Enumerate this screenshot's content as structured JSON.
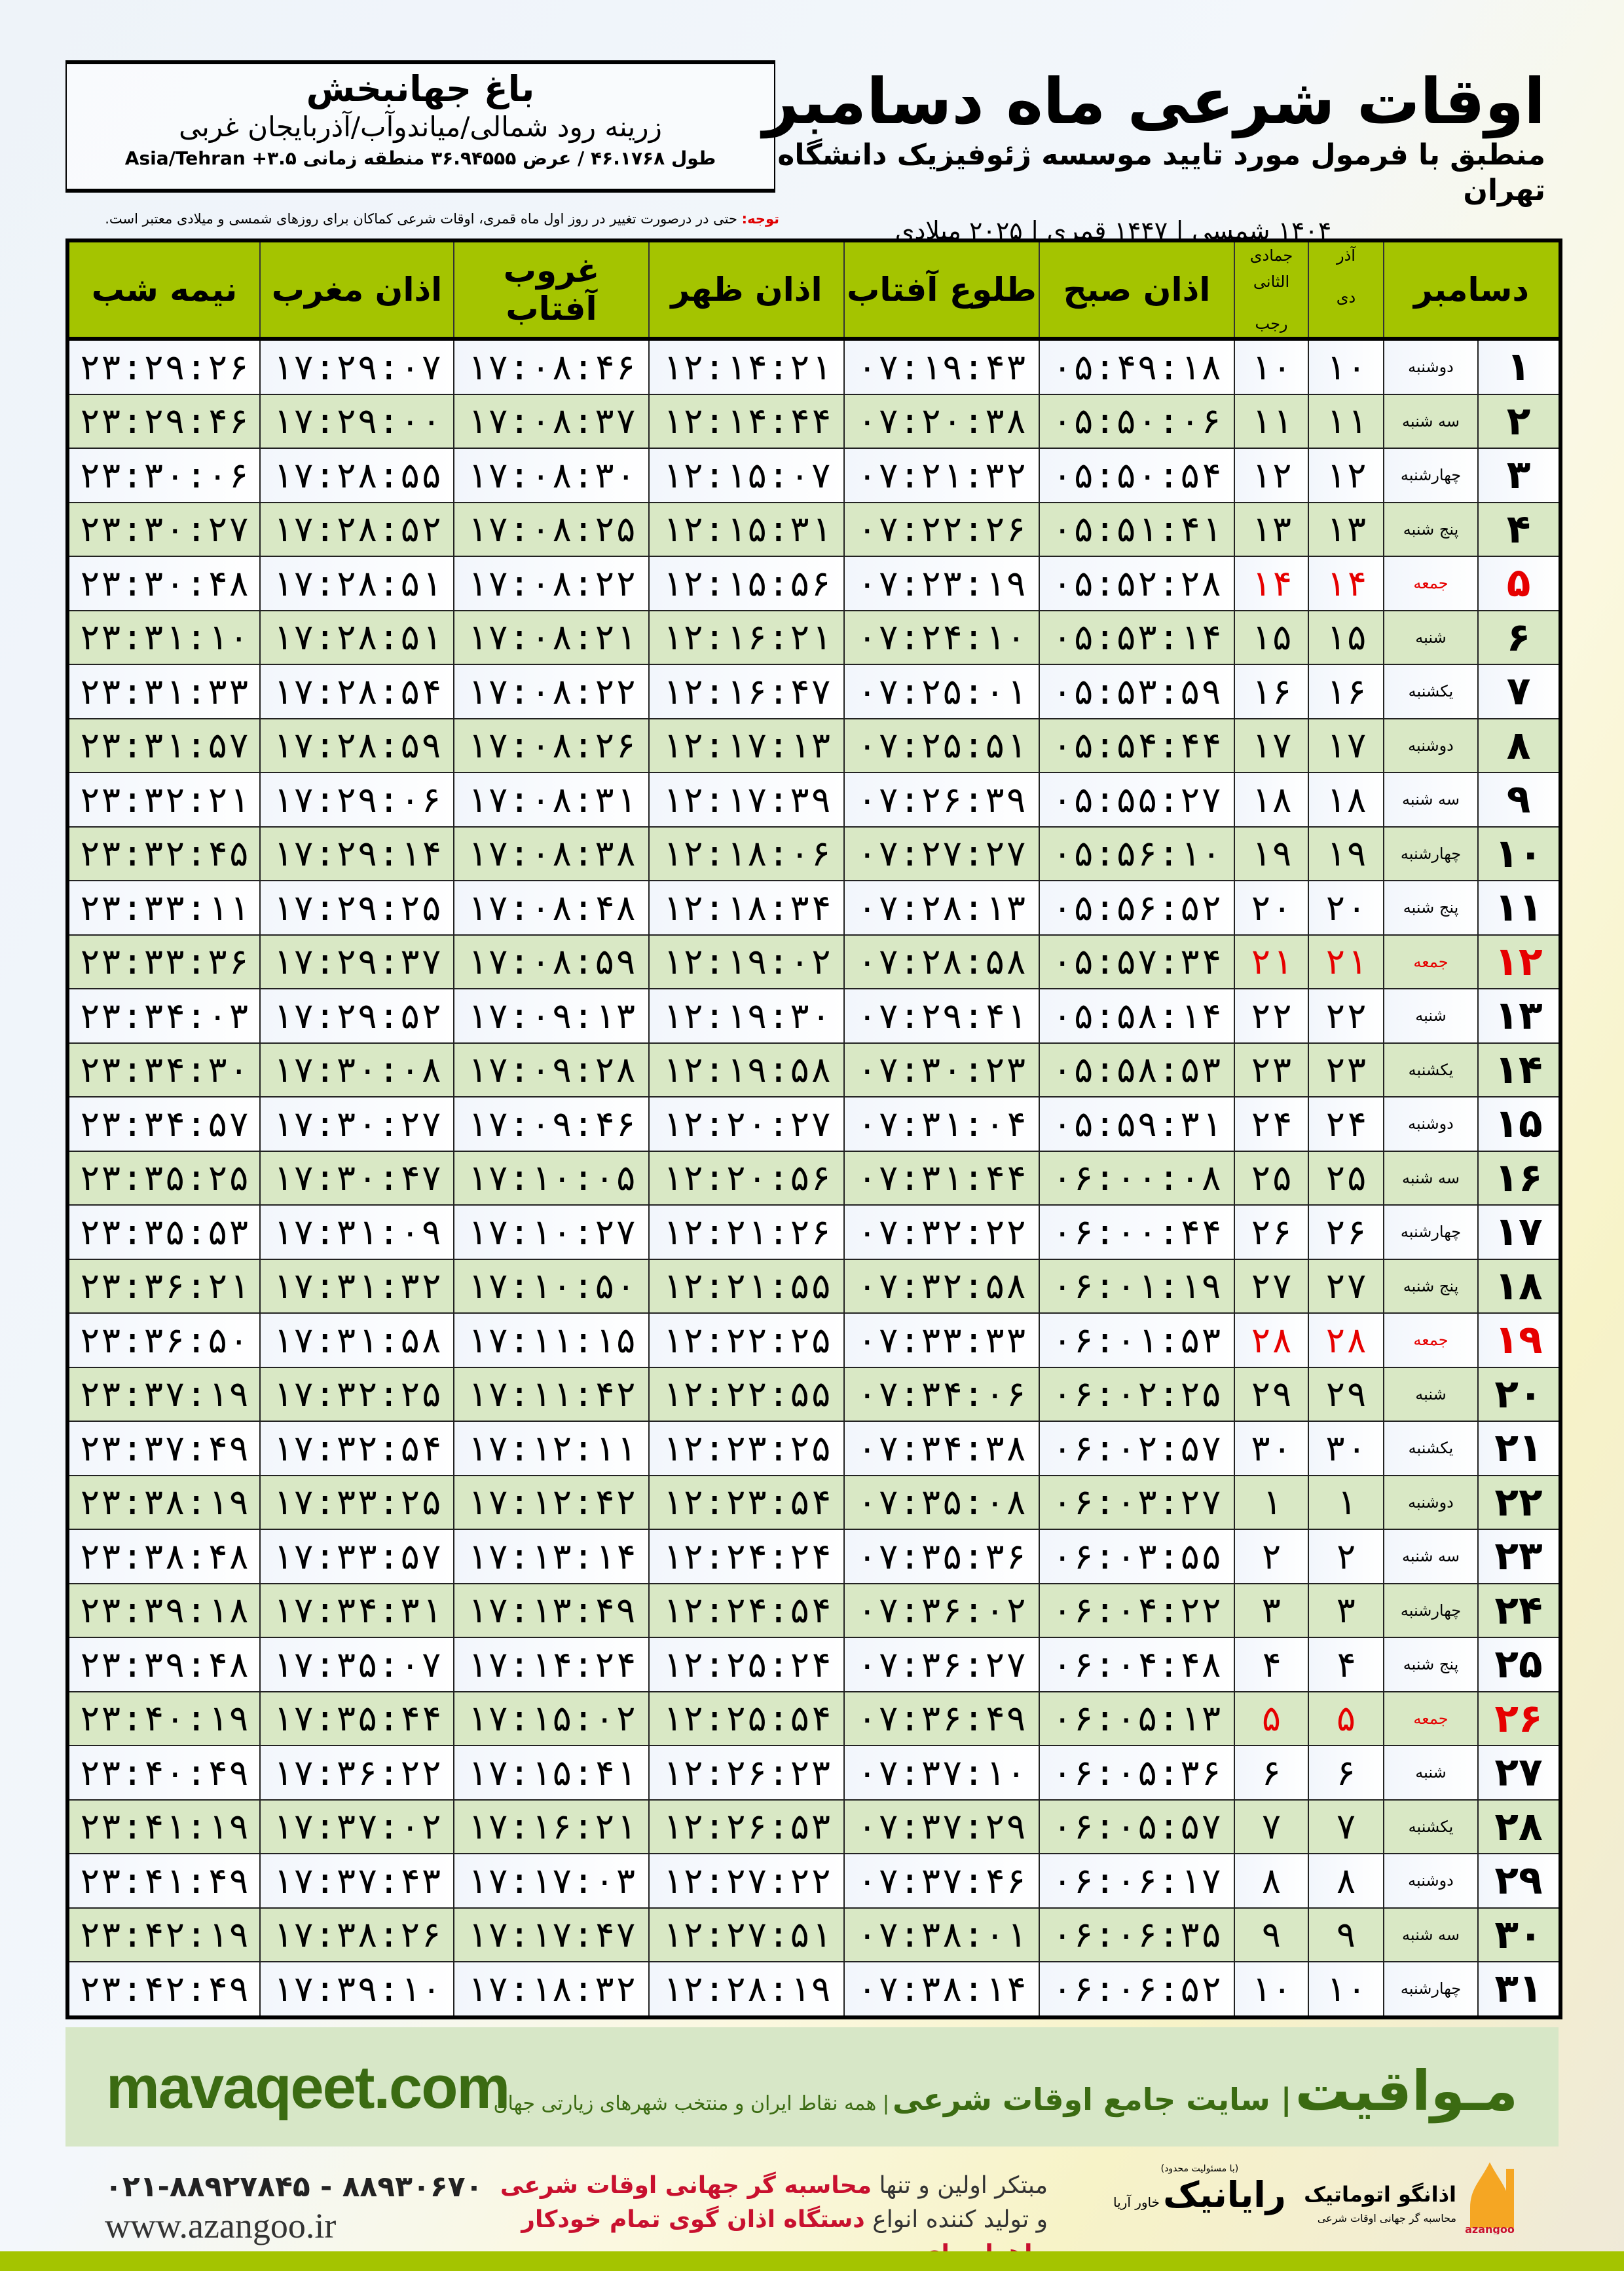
{
  "info": {
    "city": "باغ جهانبخش",
    "region": "زرینه رود شمالی/میاندوآب/آذربایجان غربی",
    "coords": "طول ۴۶.۱۷۶۸ / عرض ۳۶.۹۴۵۵۵ منطقه زمانی ۳.۵+ Asia/Tehran"
  },
  "title": {
    "main": "اوقات شرعی ماه دسامبر",
    "sub": "منطبق با فرمول مورد تایید موسسه ژئوفیزیک دانشگاه تهران",
    "years": "۱۴۰۴ شمسی | ۱۴۴۷ قمری | ۲۰۲۵ میلادی"
  },
  "note": {
    "label": "توجه:",
    "text": " حتی در درصورت تغییر در روز اول ماه قمری، اوقات شرعی کماکان برای روزهای شمسی و میلادی معتبر است."
  },
  "colors": {
    "header": "#a4c400",
    "friday": "#e60000",
    "row_alt": "#d9e8c5",
    "brand": "#3b6b12"
  },
  "table": {
    "headers": {
      "day": "دسامبر",
      "shamsi_top": "آذر",
      "shamsi_bottom": "دی",
      "qamari_top": "جمادی الثانی",
      "qamari_bottom": "رجب",
      "fajr": "اذان صبح",
      "sunrise": "طلوع آفتاب",
      "dhuhr": "اذان ظهر",
      "sunset": "غروب آفتاب",
      "maghrib": "اذان مغرب",
      "midnight": "نیمه شب"
    },
    "rows": [
      {
        "day": "۱",
        "weekday": "دوشنبه",
        "shamsi": "۱۰",
        "qamari": "۱۰",
        "fajr": "۰۵:۴۹:۱۸",
        "sunrise": "۰۷:۱۹:۴۳",
        "dhuhr": "۱۲:۱۴:۲۱",
        "sunset": "۱۷:۰۸:۴۶",
        "maghrib": "۱۷:۲۹:۰۷",
        "midnight": "۲۳:۲۹:۲۶",
        "friday": false
      },
      {
        "day": "۲",
        "weekday": "سه شنبه",
        "shamsi": "۱۱",
        "qamari": "۱۱",
        "fajr": "۰۵:۵۰:۰۶",
        "sunrise": "۰۷:۲۰:۳۸",
        "dhuhr": "۱۲:۱۴:۴۴",
        "sunset": "۱۷:۰۸:۳۷",
        "maghrib": "۱۷:۲۹:۰۰",
        "midnight": "۲۳:۲۹:۴۶",
        "friday": false
      },
      {
        "day": "۳",
        "weekday": "چهارشنبه",
        "shamsi": "۱۲",
        "qamari": "۱۲",
        "fajr": "۰۵:۵۰:۵۴",
        "sunrise": "۰۷:۲۱:۳۲",
        "dhuhr": "۱۲:۱۵:۰۷",
        "sunset": "۱۷:۰۸:۳۰",
        "maghrib": "۱۷:۲۸:۵۵",
        "midnight": "۲۳:۳۰:۰۶",
        "friday": false
      },
      {
        "day": "۴",
        "weekday": "پنج شنبه",
        "shamsi": "۱۳",
        "qamari": "۱۳",
        "fajr": "۰۵:۵۱:۴۱",
        "sunrise": "۰۷:۲۲:۲۶",
        "dhuhr": "۱۲:۱۵:۳۱",
        "sunset": "۱۷:۰۸:۲۵",
        "maghrib": "۱۷:۲۸:۵۲",
        "midnight": "۲۳:۳۰:۲۷",
        "friday": false
      },
      {
        "day": "۵",
        "weekday": "جمعه",
        "shamsi": "۱۴",
        "qamari": "۱۴",
        "fajr": "۰۵:۵۲:۲۸",
        "sunrise": "۰۷:۲۳:۱۹",
        "dhuhr": "۱۲:۱۵:۵۶",
        "sunset": "۱۷:۰۸:۲۲",
        "maghrib": "۱۷:۲۸:۵۱",
        "midnight": "۲۳:۳۰:۴۸",
        "friday": true
      },
      {
        "day": "۶",
        "weekday": "شنبه",
        "shamsi": "۱۵",
        "qamari": "۱۵",
        "fajr": "۰۵:۵۳:۱۴",
        "sunrise": "۰۷:۲۴:۱۰",
        "dhuhr": "۱۲:۱۶:۲۱",
        "sunset": "۱۷:۰۸:۲۱",
        "maghrib": "۱۷:۲۸:۵۱",
        "midnight": "۲۳:۳۱:۱۰",
        "friday": false
      },
      {
        "day": "۷",
        "weekday": "یکشنبه",
        "shamsi": "۱۶",
        "qamari": "۱۶",
        "fajr": "۰۵:۵۳:۵۹",
        "sunrise": "۰۷:۲۵:۰۱",
        "dhuhr": "۱۲:۱۶:۴۷",
        "sunset": "۱۷:۰۸:۲۲",
        "maghrib": "۱۷:۲۸:۵۴",
        "midnight": "۲۳:۳۱:۳۳",
        "friday": false
      },
      {
        "day": "۸",
        "weekday": "دوشنبه",
        "shamsi": "۱۷",
        "qamari": "۱۷",
        "fajr": "۰۵:۵۴:۴۴",
        "sunrise": "۰۷:۲۵:۵۱",
        "dhuhr": "۱۲:۱۷:۱۳",
        "sunset": "۱۷:۰۸:۲۶",
        "maghrib": "۱۷:۲۸:۵۹",
        "midnight": "۲۳:۳۱:۵۷",
        "friday": false
      },
      {
        "day": "۹",
        "weekday": "سه شنبه",
        "shamsi": "۱۸",
        "qamari": "۱۸",
        "fajr": "۰۵:۵۵:۲۷",
        "sunrise": "۰۷:۲۶:۳۹",
        "dhuhr": "۱۲:۱۷:۳۹",
        "sunset": "۱۷:۰۸:۳۱",
        "maghrib": "۱۷:۲۹:۰۶",
        "midnight": "۲۳:۳۲:۲۱",
        "friday": false
      },
      {
        "day": "۱۰",
        "weekday": "چهارشنبه",
        "shamsi": "۱۹",
        "qamari": "۱۹",
        "fajr": "۰۵:۵۶:۱۰",
        "sunrise": "۰۷:۲۷:۲۷",
        "dhuhr": "۱۲:۱۸:۰۶",
        "sunset": "۱۷:۰۸:۳۸",
        "maghrib": "۱۷:۲۹:۱۴",
        "midnight": "۲۳:۳۲:۴۵",
        "friday": false
      },
      {
        "day": "۱۱",
        "weekday": "پنج شنبه",
        "shamsi": "۲۰",
        "qamari": "۲۰",
        "fajr": "۰۵:۵۶:۵۲",
        "sunrise": "۰۷:۲۸:۱۳",
        "dhuhr": "۱۲:۱۸:۳۴",
        "sunset": "۱۷:۰۸:۴۸",
        "maghrib": "۱۷:۲۹:۲۵",
        "midnight": "۲۳:۳۳:۱۱",
        "friday": false
      },
      {
        "day": "۱۲",
        "weekday": "جمعه",
        "shamsi": "۲۱",
        "qamari": "۲۱",
        "fajr": "۰۵:۵۷:۳۴",
        "sunrise": "۰۷:۲۸:۵۸",
        "dhuhr": "۱۲:۱۹:۰۲",
        "sunset": "۱۷:۰۸:۵۹",
        "maghrib": "۱۷:۲۹:۳۷",
        "midnight": "۲۳:۳۳:۳۶",
        "friday": true
      },
      {
        "day": "۱۳",
        "weekday": "شنبه",
        "shamsi": "۲۲",
        "qamari": "۲۲",
        "fajr": "۰۵:۵۸:۱۴",
        "sunrise": "۰۷:۲۹:۴۱",
        "dhuhr": "۱۲:۱۹:۳۰",
        "sunset": "۱۷:۰۹:۱۳",
        "maghrib": "۱۷:۲۹:۵۲",
        "midnight": "۲۳:۳۴:۰۳",
        "friday": false
      },
      {
        "day": "۱۴",
        "weekday": "یکشنبه",
        "shamsi": "۲۳",
        "qamari": "۲۳",
        "fajr": "۰۵:۵۸:۵۳",
        "sunrise": "۰۷:۳۰:۲۳",
        "dhuhr": "۱۲:۱۹:۵۸",
        "sunset": "۱۷:۰۹:۲۸",
        "maghrib": "۱۷:۳۰:۰۸",
        "midnight": "۲۳:۳۴:۳۰",
        "friday": false
      },
      {
        "day": "۱۵",
        "weekday": "دوشنبه",
        "shamsi": "۲۴",
        "qamari": "۲۴",
        "fajr": "۰۵:۵۹:۳۱",
        "sunrise": "۰۷:۳۱:۰۴",
        "dhuhr": "۱۲:۲۰:۲۷",
        "sunset": "۱۷:۰۹:۴۶",
        "maghrib": "۱۷:۳۰:۲۷",
        "midnight": "۲۳:۳۴:۵۷",
        "friday": false
      },
      {
        "day": "۱۶",
        "weekday": "سه شنبه",
        "shamsi": "۲۵",
        "qamari": "۲۵",
        "fajr": "۰۶:۰۰:۰۸",
        "sunrise": "۰۷:۳۱:۴۴",
        "dhuhr": "۱۲:۲۰:۵۶",
        "sunset": "۱۷:۱۰:۰۵",
        "maghrib": "۱۷:۳۰:۴۷",
        "midnight": "۲۳:۳۵:۲۵",
        "friday": false
      },
      {
        "day": "۱۷",
        "weekday": "چهارشنبه",
        "shamsi": "۲۶",
        "qamari": "۲۶",
        "fajr": "۰۶:۰۰:۴۴",
        "sunrise": "۰۷:۳۲:۲۲",
        "dhuhr": "۱۲:۲۱:۲۶",
        "sunset": "۱۷:۱۰:۲۷",
        "maghrib": "۱۷:۳۱:۰۹",
        "midnight": "۲۳:۳۵:۵۳",
        "friday": false
      },
      {
        "day": "۱۸",
        "weekday": "پنج شنبه",
        "shamsi": "۲۷",
        "qamari": "۲۷",
        "fajr": "۰۶:۰۱:۱۹",
        "sunrise": "۰۷:۳۲:۵۸",
        "dhuhr": "۱۲:۲۱:۵۵",
        "sunset": "۱۷:۱۰:۵۰",
        "maghrib": "۱۷:۳۱:۳۲",
        "midnight": "۲۳:۳۶:۲۱",
        "friday": false
      },
      {
        "day": "۱۹",
        "weekday": "جمعه",
        "shamsi": "۲۸",
        "qamari": "۲۸",
        "fajr": "۰۶:۰۱:۵۳",
        "sunrise": "۰۷:۳۳:۳۳",
        "dhuhr": "۱۲:۲۲:۲۵",
        "sunset": "۱۷:۱۱:۱۵",
        "maghrib": "۱۷:۳۱:۵۸",
        "midnight": "۲۳:۳۶:۵۰",
        "friday": true
      },
      {
        "day": "۲۰",
        "weekday": "شنبه",
        "shamsi": "۲۹",
        "qamari": "۲۹",
        "fajr": "۰۶:۰۲:۲۵",
        "sunrise": "۰۷:۳۴:۰۶",
        "dhuhr": "۱۲:۲۲:۵۵",
        "sunset": "۱۷:۱۱:۴۲",
        "maghrib": "۱۷:۳۲:۲۵",
        "midnight": "۲۳:۳۷:۱۹",
        "friday": false
      },
      {
        "day": "۲۱",
        "weekday": "یکشنبه",
        "shamsi": "۳۰",
        "qamari": "۳۰",
        "fajr": "۰۶:۰۲:۵۷",
        "sunrise": "۰۷:۳۴:۳۸",
        "dhuhr": "۱۲:۲۳:۲۵",
        "sunset": "۱۷:۱۲:۱۱",
        "maghrib": "۱۷:۳۲:۵۴",
        "midnight": "۲۳:۳۷:۴۹",
        "friday": false
      },
      {
        "day": "۲۲",
        "weekday": "دوشنبه",
        "shamsi": "۱",
        "qamari": "۱",
        "fajr": "۰۶:۰۳:۲۷",
        "sunrise": "۰۷:۳۵:۰۸",
        "dhuhr": "۱۲:۲۳:۵۴",
        "sunset": "۱۷:۱۲:۴۲",
        "maghrib": "۱۷:۳۳:۲۵",
        "midnight": "۲۳:۳۸:۱۹",
        "friday": false
      },
      {
        "day": "۲۳",
        "weekday": "سه شنبه",
        "shamsi": "۲",
        "qamari": "۲",
        "fajr": "۰۶:۰۳:۵۵",
        "sunrise": "۰۷:۳۵:۳۶",
        "dhuhr": "۱۲:۲۴:۲۴",
        "sunset": "۱۷:۱۳:۱۴",
        "maghrib": "۱۷:۳۳:۵۷",
        "midnight": "۲۳:۳۸:۴۸",
        "friday": false
      },
      {
        "day": "۲۴",
        "weekday": "چهارشنبه",
        "shamsi": "۳",
        "qamari": "۳",
        "fajr": "۰۶:۰۴:۲۲",
        "sunrise": "۰۷:۳۶:۰۲",
        "dhuhr": "۱۲:۲۴:۵۴",
        "sunset": "۱۷:۱۳:۴۹",
        "maghrib": "۱۷:۳۴:۳۱",
        "midnight": "۲۳:۳۹:۱۸",
        "friday": false
      },
      {
        "day": "۲۵",
        "weekday": "پنج شنبه",
        "shamsi": "۴",
        "qamari": "۴",
        "fajr": "۰۶:۰۴:۴۸",
        "sunrise": "۰۷:۳۶:۲۷",
        "dhuhr": "۱۲:۲۵:۲۴",
        "sunset": "۱۷:۱۴:۲۴",
        "maghrib": "۱۷:۳۵:۰۷",
        "midnight": "۲۳:۳۹:۴۸",
        "friday": false
      },
      {
        "day": "۲۶",
        "weekday": "جمعه",
        "shamsi": "۵",
        "qamari": "۵",
        "fajr": "۰۶:۰۵:۱۳",
        "sunrise": "۰۷:۳۶:۴۹",
        "dhuhr": "۱۲:۲۵:۵۴",
        "sunset": "۱۷:۱۵:۰۲",
        "maghrib": "۱۷:۳۵:۴۴",
        "midnight": "۲۳:۴۰:۱۹",
        "friday": true
      },
      {
        "day": "۲۷",
        "weekday": "شنبه",
        "shamsi": "۶",
        "qamari": "۶",
        "fajr": "۰۶:۰۵:۳۶",
        "sunrise": "۰۷:۳۷:۱۰",
        "dhuhr": "۱۲:۲۶:۲۳",
        "sunset": "۱۷:۱۵:۴۱",
        "maghrib": "۱۷:۳۶:۲۲",
        "midnight": "۲۳:۴۰:۴۹",
        "friday": false
      },
      {
        "day": "۲۸",
        "weekday": "یکشنبه",
        "shamsi": "۷",
        "qamari": "۷",
        "fajr": "۰۶:۰۵:۵۷",
        "sunrise": "۰۷:۳۷:۲۹",
        "dhuhr": "۱۲:۲۶:۵۳",
        "sunset": "۱۷:۱۶:۲۱",
        "maghrib": "۱۷:۳۷:۰۲",
        "midnight": "۲۳:۴۱:۱۹",
        "friday": false
      },
      {
        "day": "۲۹",
        "weekday": "دوشنبه",
        "shamsi": "۸",
        "qamari": "۸",
        "fajr": "۰۶:۰۶:۱۷",
        "sunrise": "۰۷:۳۷:۴۶",
        "dhuhr": "۱۲:۲۷:۲۲",
        "sunset": "۱۷:۱۷:۰۳",
        "maghrib": "۱۷:۳۷:۴۳",
        "midnight": "۲۳:۴۱:۴۹",
        "friday": false
      },
      {
        "day": "۳۰",
        "weekday": "سه شنبه",
        "shamsi": "۹",
        "qamari": "۹",
        "fajr": "۰۶:۰۶:۳۵",
        "sunrise": "۰۷:۳۸:۰۱",
        "dhuhr": "۱۲:۲۷:۵۱",
        "sunset": "۱۷:۱۷:۴۷",
        "maghrib": "۱۷:۳۸:۲۶",
        "midnight": "۲۳:۴۲:۱۹",
        "friday": false
      },
      {
        "day": "۳۱",
        "weekday": "چهارشنبه",
        "shamsi": "۱۰",
        "qamari": "۱۰",
        "fajr": "۰۶:۰۶:۵۲",
        "sunrise": "۰۷:۳۸:۱۴",
        "dhuhr": "۱۲:۲۸:۱۹",
        "sunset": "۱۷:۱۸:۳۲",
        "maghrib": "۱۷:۳۹:۱۰",
        "midnight": "۲۳:۴۲:۴۹",
        "friday": false
      }
    ]
  },
  "band": {
    "site": "mavaqeet.com",
    "brand": "مـواقیت",
    "tagline": "سایت جامع اوقات شرعی",
    "desc": "همه نقاط ایران و منتخب شهرهای زیارتی جهان"
  },
  "footer": {
    "phone": "۰۲۱-۸۸۹۲۷۸۴۵ - ۸۸۹۳۰۶۷۰",
    "website": "www.azangoo.ir",
    "line1_a": "مبتکر اولین و تنها ",
    "line1_b": "محاسبه گر جهانی اوقات شرعی",
    "line2_a": "و تولید کننده انواع ",
    "line2_b": "دستگاه اذان گوی تمام خودکار ماهواره ای",
    "logo_rayanik": "رایانیک",
    "logo_rayanik_sub": "خاور آریا",
    "logo_rayanik_note": "(با مسئولیت محدود)",
    "logo_azangoo": "اذانگو اتوماتیک",
    "logo_azangoo_sub": "محاسبه گر جهانی اوقات شرعی",
    "logo_azangoo_latin": "azangoo"
  }
}
